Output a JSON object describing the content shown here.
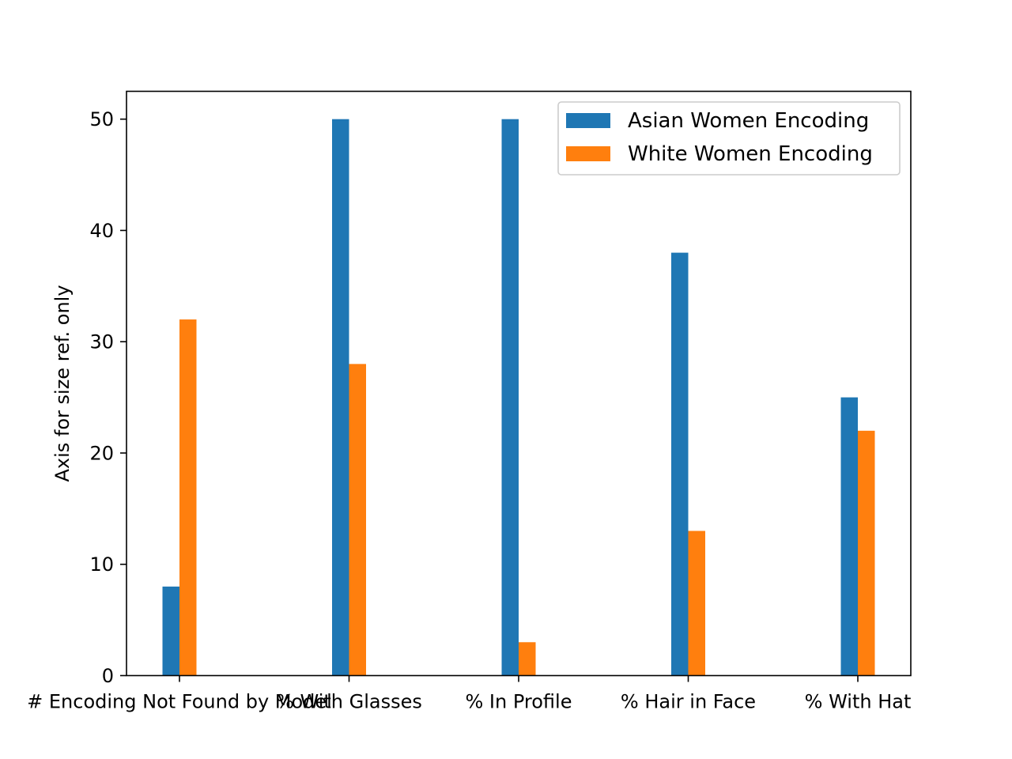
{
  "chart_data": {
    "type": "bar",
    "title": "",
    "xlabel": "",
    "ylabel": "Axis for size ref. only",
    "categories": [
      "# Encoding Not Found by Model",
      "% With Glasses",
      "% In Profile",
      "% Hair in Face",
      "% With Hat"
    ],
    "series": [
      {
        "name": "Asian Women Encoding",
        "values": [
          8,
          50,
          50,
          38,
          25
        ],
        "color": "#1f77b4"
      },
      {
        "name": "White Women Encoding",
        "values": [
          32,
          28,
          3,
          13,
          22
        ],
        "color": "#ff7f0e"
      }
    ],
    "ylim": [
      0,
      52.5
    ],
    "yticks": [
      0,
      10,
      20,
      30,
      40,
      50
    ],
    "grid": false,
    "legend_position": "top-right"
  }
}
